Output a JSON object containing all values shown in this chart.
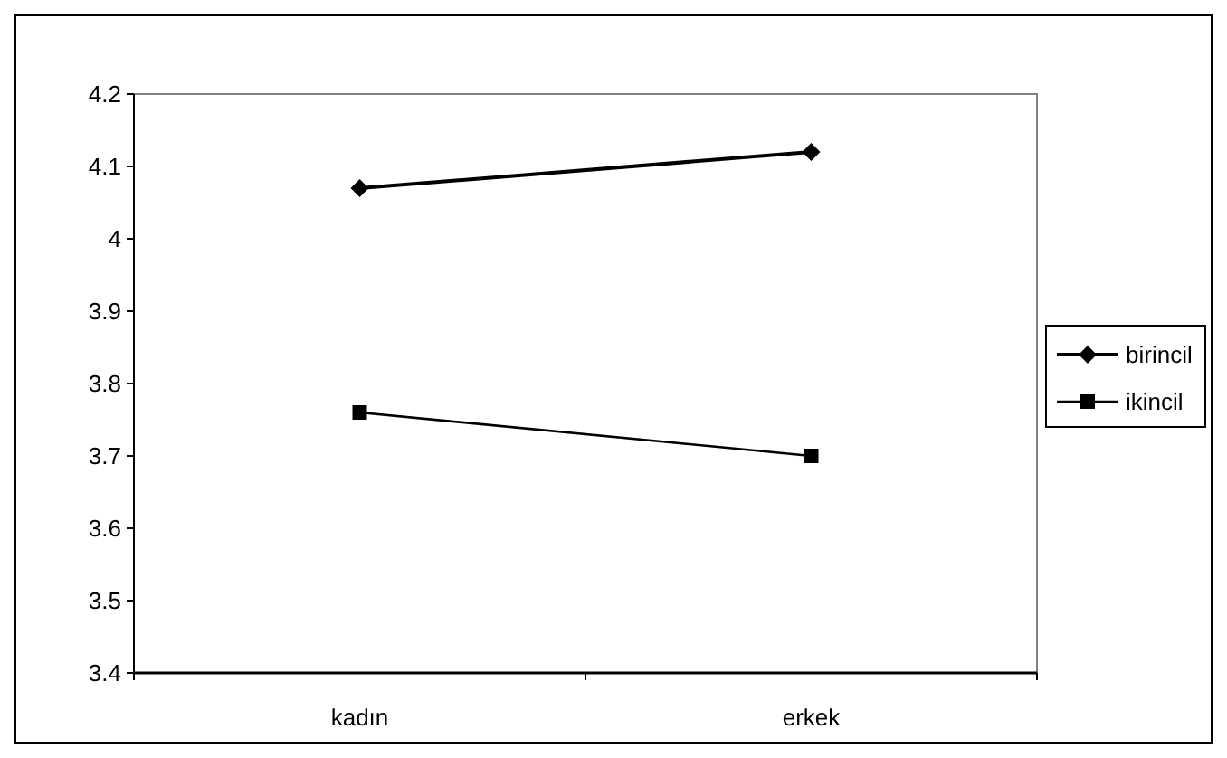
{
  "chart_data": {
    "type": "line",
    "categories": [
      "kadın",
      "erkek"
    ],
    "series": [
      {
        "name": "birincil",
        "color": "#000000",
        "values": [
          4.07,
          4.12
        ],
        "marker": "diamond"
      },
      {
        "name": "ikincil",
        "color": "#000000",
        "values": [
          3.76,
          3.7
        ],
        "marker": "square"
      }
    ],
    "ylim": [
      3.4,
      4.2
    ],
    "yticks": [
      3.4,
      3.5,
      3.6,
      3.7,
      3.8,
      3.9,
      4,
      4.1,
      4.2
    ],
    "grid": false,
    "legend": "right"
  }
}
